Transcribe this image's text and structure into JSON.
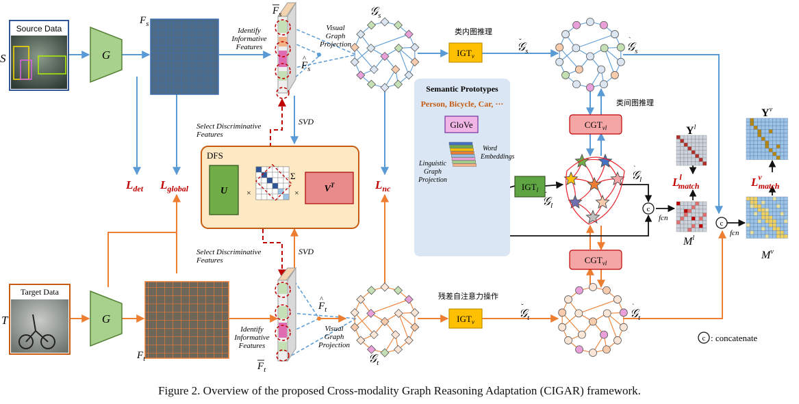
{
  "source": {
    "label": "Source Data",
    "symbol": "S",
    "feature": "F",
    "feature_sub": "s"
  },
  "target": {
    "label": "Target Data",
    "symbol": "T",
    "feature": "F",
    "feature_sub": "t"
  },
  "generator_label": "G",
  "identify_text": [
    "Identify",
    "Informative",
    "Features"
  ],
  "projection_text": [
    "Visual",
    "Graph",
    "Projection"
  ],
  "select_text": [
    "Select  Discriminative",
    "Features"
  ],
  "svd_label": "SVD",
  "dfs": {
    "title": "DFS",
    "u": "U",
    "times": "×",
    "sigma": "Σ",
    "v": "V",
    "v_sup": "T"
  },
  "losses": {
    "det": "det",
    "global": "global",
    "nc": "nc",
    "match": "match"
  },
  "semantic": {
    "title": "Semantic Prototypes",
    "classes": "Person, Bicycle, Car, ···",
    "glove": "GloVe",
    "word_embeddings": [
      "Word",
      "Embeddings"
    ],
    "linguistic_projection": [
      "Linguistic",
      "Graph",
      "Projection"
    ]
  },
  "modules": {
    "igt": "IGT",
    "igt_v": "v",
    "igt_l": "l",
    "cgt": "CGT",
    "cgt_sub": "vl"
  },
  "chinese": {
    "intra_class": "类内图推理",
    "inter_class": "类间图推理",
    "residual_attention": "残差自注意力操作"
  },
  "fcn": "fcn",
  "concat_symbol": "c",
  "concatenate_text": ": concatenate",
  "y_label": "Y",
  "m_label": "M",
  "sup_l": "l",
  "sup_v": "v",
  "caption": "Figure 2. Overview of the proposed Cross-modality Graph Reasoning Adaptation (CIGAR) framework.",
  "colors": {
    "source_blue": "#5b9bd5",
    "target_orange": "#ed7d31",
    "graph_red": "#e8222b",
    "loss_red": "#c00000",
    "dfs_fill": "#fce9c4",
    "igt_yellow": "#ffc000",
    "igt_green": "#5fa543",
    "cgt_pink": "#f4a6a6",
    "semantic_bg": "#dae6f3"
  }
}
